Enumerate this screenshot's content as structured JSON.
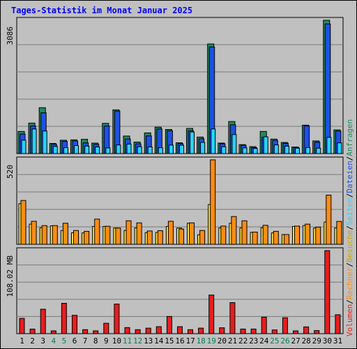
{
  "title": "Tages-Statistik im Monat Januar 2025",
  "colors": {
    "background": "#c0c0c0",
    "title": "#0000ff",
    "weekday": "#000000",
    "weekend": "#00805a",
    "anfragen": "#1e8a5e",
    "dateien": "#1e50e6",
    "seiten": "#28d2ff",
    "besuche": "#ffe63c",
    "rechner": "#ff8c14",
    "volumen": "#e61e1e"
  },
  "chart_data": [
    {
      "type": "bar",
      "panel": "top",
      "scale_label": "3086",
      "ylim": [
        0,
        3086
      ],
      "categories": [
        "1",
        "2",
        "3",
        "4",
        "5",
        "6",
        "7",
        "8",
        "9",
        "10",
        "11",
        "12",
        "13",
        "14",
        "15",
        "16",
        "17",
        "18",
        "19",
        "20",
        "21",
        "22",
        "23",
        "24",
        "25",
        "26",
        "27",
        "28",
        "29",
        "30",
        "31"
      ],
      "series": [
        {
          "name": "Anfragen",
          "values": [
            512,
            705,
            1062,
            234,
            309,
            317,
            330,
            243,
            700,
            1012,
            405,
            266,
            478,
            610,
            557,
            249,
            582,
            382,
            2536,
            242,
            741,
            207,
            160,
            512,
            334,
            257,
            152,
            658,
            292,
            3086,
            548
          ]
        },
        {
          "name": "Dateien",
          "values": [
            450,
            640,
            944,
            213,
            281,
            292,
            248,
            213,
            637,
            982,
            338,
            226,
            409,
            568,
            528,
            231,
            527,
            342,
            2467,
            227,
            666,
            190,
            138,
            375,
            304,
            238,
            140,
            640,
            264,
            3000,
            521
          ]
        },
        {
          "name": "Seiten",
          "values": [
            310,
            569,
            522,
            165,
            135,
            185,
            173,
            153,
            131,
            199,
            220,
            159,
            153,
            135,
            196,
            194,
            500,
            258,
            569,
            158,
            439,
            133,
            118,
            388,
            200,
            172,
            126,
            140,
            125,
            375,
            248
          ]
        }
      ],
      "highlight_day": "19"
    },
    {
      "type": "bar",
      "panel": "middle",
      "scale_label": "520",
      "ylim": [
        0,
        520
      ],
      "categories": [
        "1",
        "2",
        "3",
        "4",
        "5",
        "6",
        "7",
        "8",
        "9",
        "10",
        "11",
        "12",
        "13",
        "14",
        "15",
        "16",
        "17",
        "18",
        "19",
        "20",
        "21",
        "22",
        "23",
        "24",
        "25",
        "26",
        "27",
        "28",
        "29",
        "30",
        "31"
      ],
      "series": [
        {
          "name": "Besuche",
          "values": [
            250,
            124,
            102,
            114,
            85,
            71,
            70,
            110,
            110,
            100,
            85,
            101,
            72,
            73,
            110,
            100,
            130,
            59,
            245,
            101,
            130,
            101,
            74,
            102,
            70,
            60,
            110,
            115,
            100,
            137,
            100
          ]
        },
        {
          "name": "Rechner",
          "values": [
            270,
            142,
            115,
            115,
            130,
            85,
            80,
            155,
            111,
            100,
            145,
            132,
            82,
            84,
            142,
            94,
            132,
            85,
            520,
            112,
            171,
            145,
            75,
            117,
            80,
            60,
            112,
            124,
            106,
            303,
            141
          ]
        }
      ]
    },
    {
      "type": "bar",
      "panel": "bottom",
      "scale_label": "108.02 MB",
      "ylim": [
        0,
        108.02
      ],
      "categories": [
        "1",
        "2",
        "3",
        "4",
        "5",
        "6",
        "7",
        "8",
        "9",
        "10",
        "11",
        "12",
        "13",
        "14",
        "15",
        "16",
        "17",
        "18",
        "19",
        "20",
        "21",
        "22",
        "23",
        "24",
        "25",
        "26",
        "27",
        "28",
        "29",
        "30",
        "31"
      ],
      "series": [
        {
          "name": "Volumen",
          "values": [
            19.9,
            5.9,
            31.8,
            3.6,
            39.5,
            23.9,
            5.2,
            3.6,
            13.5,
            38.5,
            7.9,
            5.2,
            7.2,
            9.1,
            22.3,
            9.1,
            5.2,
            7.2,
            50.2,
            7.6,
            40.4,
            6.0,
            6.0,
            21.5,
            4.8,
            20.7,
            3.6,
            8.8,
            4.0,
            108.02,
            24.6
          ]
        }
      ]
    }
  ],
  "legend": {
    "anfragen": "Anfragen",
    "dateien": "Dateien",
    "seiten": "Seiten",
    "besuche": "Besuche",
    "rechner": "Rechner",
    "volumen": "Volumen",
    "separator": "/"
  },
  "weekend_days": [
    "4",
    "5",
    "11",
    "12",
    "18",
    "19",
    "25",
    "26"
  ]
}
